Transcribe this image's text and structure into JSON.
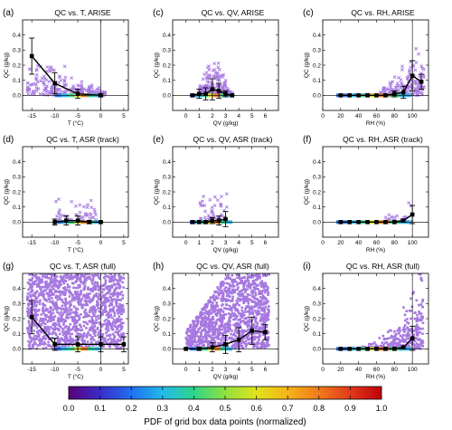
{
  "colorbar": {
    "label": "PDF of grid box data points (normalized)",
    "ticks": [
      "0.0",
      "0.1",
      "0.2",
      "0.3",
      "0.4",
      "0.5",
      "0.6",
      "0.7",
      "0.8",
      "0.9",
      "1.0"
    ],
    "colors": [
      "#5a007a",
      "#3a2cc8",
      "#1f6ff0",
      "#22b9ea",
      "#2fd58a",
      "#8fe040",
      "#e0e31a",
      "#f5b41a",
      "#f07a1c",
      "#e23a1a",
      "#c0000a"
    ]
  },
  "scatter_color": "#a678e0",
  "chart_data": [
    {
      "type": "scatter",
      "panel": "(a)",
      "title": "QC vs. T, ARISE",
      "xlabel": "T (°C)",
      "ylabel": "QC (g/kg)",
      "xlim": [
        -17,
        6
      ],
      "ylim": [
        -0.1,
        0.5
      ],
      "xticks": [
        "-15",
        "-10",
        "-5",
        "0",
        "5"
      ],
      "yticks": [
        "0.0",
        "0.1",
        "0.2",
        "0.3",
        "0.4"
      ],
      "mean_x": [
        -15,
        -10,
        -5,
        0
      ],
      "mean_y": [
        0.26,
        0.08,
        0.01,
        0.0
      ],
      "err": [
        0.12,
        0.07,
        0.03,
        0.01
      ],
      "zero_x": 0
    },
    {
      "type": "scatter",
      "panel": "(c)",
      "title": "QC vs. QV, ARISE",
      "xlabel": "QV (g/kg)",
      "ylabel": "QC (g/kg)",
      "xlim": [
        -1,
        7
      ],
      "ylim": [
        -0.1,
        0.5
      ],
      "xticks": [
        "0",
        "1",
        "2",
        "3",
        "4",
        "5",
        "6"
      ],
      "yticks": [
        "0.0",
        "0.1",
        "0.2",
        "0.3",
        "0.4"
      ],
      "mean_x": [
        0.5,
        1,
        1.5,
        2,
        2.5,
        3,
        3.5
      ],
      "mean_y": [
        0.0,
        0.01,
        0.01,
        0.04,
        0.03,
        0.01,
        0.0
      ],
      "err": [
        0.0,
        0.03,
        0.04,
        0.07,
        0.05,
        0.02,
        0.0
      ],
      "zero_x": null
    },
    {
      "type": "scatter",
      "panel": "(c)",
      "title": "QC vs. RH, ARISE",
      "xlabel": "RH (%)",
      "ylabel": "QC (g/kg)",
      "xlim": [
        0,
        118
      ],
      "ylim": [
        -0.1,
        0.5
      ],
      "xticks": [
        "0",
        "20",
        "40",
        "60",
        "80",
        "100"
      ],
      "yticks": [
        "0.0",
        "0.1",
        "0.2",
        "0.3",
        "0.4"
      ],
      "mean_x": [
        20,
        30,
        40,
        50,
        60,
        70,
        80,
        90,
        100,
        110
      ],
      "mean_y": [
        0,
        0,
        0,
        0,
        0,
        0,
        0.01,
        0.02,
        0.13,
        0.09
      ],
      "err": [
        0,
        0,
        0,
        0,
        0,
        0,
        0.02,
        0.04,
        0.1,
        0.05
      ],
      "zero_x": 100
    },
    {
      "type": "scatter",
      "panel": "(d)",
      "title": "QC vs. T, ASR (track)",
      "xlabel": "T (°C)",
      "ylabel": "QC (g/kg)",
      "xlim": [
        -17,
        6
      ],
      "ylim": [
        -0.1,
        0.5
      ],
      "xticks": [
        "-15",
        "-10",
        "-5",
        "0",
        "5"
      ],
      "yticks": [
        "0.0",
        "0.1",
        "0.2",
        "0.3",
        "0.4"
      ],
      "mean_x": [
        -10,
        -7.5,
        -5,
        -2.5,
        0
      ],
      "mean_y": [
        0.0,
        0.01,
        0.01,
        0.0,
        0.0
      ],
      "err": [
        0.02,
        0.03,
        0.03,
        0.01,
        0.0
      ],
      "zero_x": 0
    },
    {
      "type": "scatter",
      "panel": "(e)",
      "title": "QC vs. QV, ASR (track)",
      "xlabel": "QV (g/kg)",
      "ylabel": "QC (g/kg)",
      "xlim": [
        -1,
        7
      ],
      "ylim": [
        -0.1,
        0.5
      ],
      "xticks": [
        "0",
        "1",
        "2",
        "3",
        "4",
        "5",
        "6"
      ],
      "yticks": [
        "0.0",
        "0.1",
        "0.2",
        "0.3",
        "0.4"
      ],
      "mean_x": [
        0.5,
        1,
        1.5,
        2,
        2.5,
        3
      ],
      "mean_y": [
        0,
        0,
        0,
        0.01,
        0.01,
        0.02
      ],
      "err": [
        0,
        0,
        0.01,
        0.02,
        0.03,
        0.05
      ],
      "zero_x": null
    },
    {
      "type": "scatter",
      "panel": "(f)",
      "title": "QC vs. RH, ASR (track)",
      "xlabel": "RH (%)",
      "ylabel": "QC (g/kg)",
      "xlim": [
        0,
        118
      ],
      "ylim": [
        -0.1,
        0.5
      ],
      "xticks": [
        "0",
        "20",
        "40",
        "60",
        "80",
        "100"
      ],
      "yticks": [
        "0.0",
        "0.1",
        "0.2",
        "0.3",
        "0.4"
      ],
      "mean_x": [
        20,
        30,
        40,
        50,
        60,
        70,
        80,
        90,
        100
      ],
      "mean_y": [
        0,
        0,
        0,
        0,
        0,
        0,
        0,
        0.01,
        0.05
      ],
      "err": [
        0,
        0,
        0,
        0,
        0,
        0,
        0,
        0.01,
        0.06
      ],
      "zero_x": 100
    },
    {
      "type": "scatter",
      "panel": "(g)",
      "title": "QC vs. T, ASR (full)",
      "xlabel": "T (°C)",
      "ylabel": "QC (g/kg)",
      "xlim": [
        -17,
        6
      ],
      "ylim": [
        -0.1,
        0.5
      ],
      "xticks": [
        "-15",
        "-10",
        "-5",
        "0",
        "5"
      ],
      "yticks": [
        "0.0",
        "0.1",
        "0.2",
        "0.3",
        "0.4"
      ],
      "mean_x": [
        -15,
        -10,
        -5,
        0,
        5
      ],
      "mean_y": [
        0.21,
        0.03,
        0.03,
        0.03,
        0.03
      ],
      "err": [
        0.11,
        0.04,
        0.05,
        0.05,
        0.05
      ],
      "zero_x": 0
    },
    {
      "type": "scatter",
      "panel": "(h)",
      "title": "QC vs. QV, ASR (full)",
      "xlabel": "QV (g/kg)",
      "ylabel": "QC (g/kg)",
      "xlim": [
        -1,
        7
      ],
      "ylim": [
        -0.1,
        0.5
      ],
      "xticks": [
        "0",
        "1",
        "2",
        "3",
        "4",
        "5",
        "6"
      ],
      "yticks": [
        "0.0",
        "0.1",
        "0.2",
        "0.3",
        "0.4"
      ],
      "mean_x": [
        0,
        1,
        2,
        3,
        4,
        5,
        6
      ],
      "mean_y": [
        0.0,
        0.0,
        0.01,
        0.03,
        0.06,
        0.12,
        0.11
      ],
      "err": [
        0,
        0.01,
        0.03,
        0.06,
        0.08,
        0.09,
        0.05
      ],
      "zero_x": null
    },
    {
      "type": "scatter",
      "panel": "(i)",
      "title": "QC vs. RH, ASR (full)",
      "xlabel": "RH (%)",
      "ylabel": "QC (g/kg)",
      "xlim": [
        0,
        118
      ],
      "ylim": [
        -0.1,
        0.5
      ],
      "xticks": [
        "0",
        "20",
        "40",
        "60",
        "80",
        "100"
      ],
      "yticks": [
        "0.0",
        "0.1",
        "0.2",
        "0.3",
        "0.4"
      ],
      "mean_x": [
        20,
        30,
        40,
        50,
        60,
        70,
        80,
        90,
        100
      ],
      "mean_y": [
        0,
        0,
        0,
        0,
        0,
        0,
        0,
        0.01,
        0.07
      ],
      "err": [
        0,
        0,
        0,
        0,
        0,
        0,
        0,
        0.01,
        0.08
      ],
      "zero_x": 100
    }
  ]
}
